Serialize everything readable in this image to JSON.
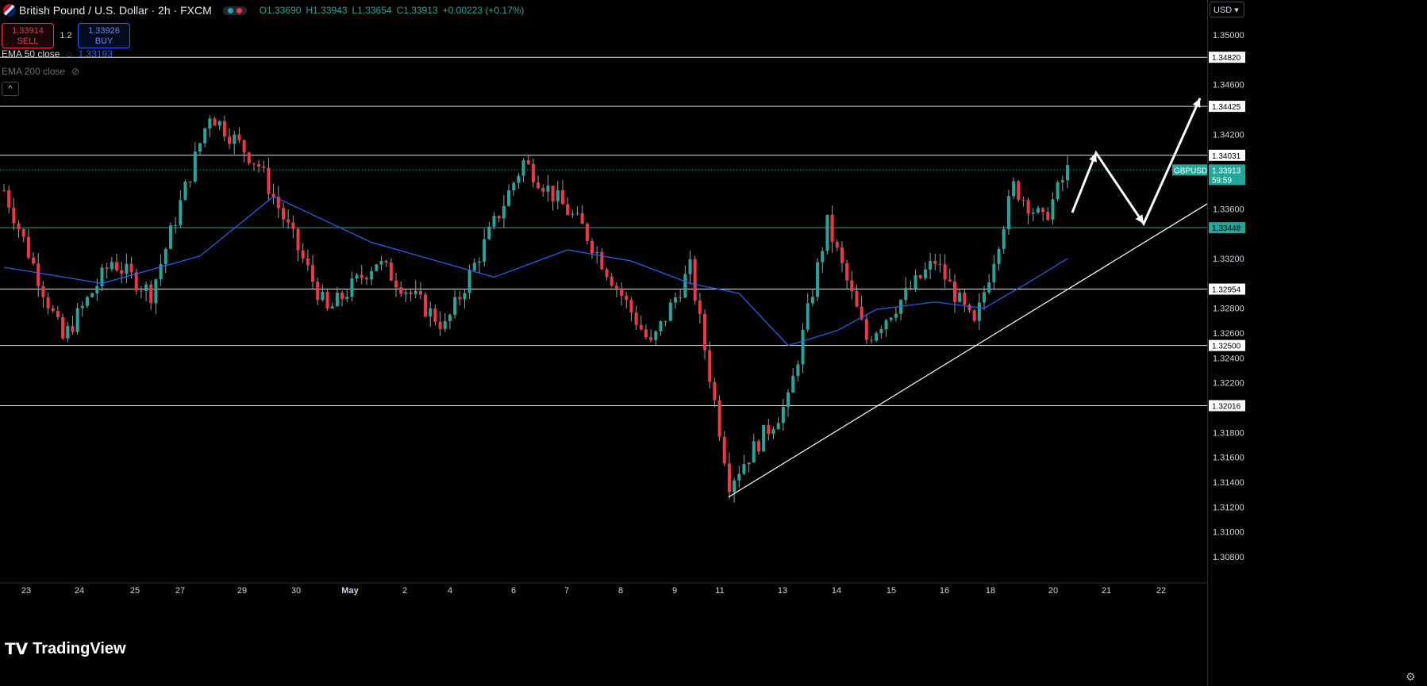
{
  "header": {
    "title": "British Pound / U.S. Dollar · 2h · FXCM",
    "open": "O1.33690",
    "high": "H1.33943",
    "low": "L1.33654",
    "close": "C1.33913",
    "change": "+0.00223 (+0.17%)"
  },
  "trade": {
    "sell_price": "1.33914",
    "sell_label": "SELL",
    "spread": "1.2",
    "buy_price": "1.33926",
    "buy_label": "BUY"
  },
  "indicators": {
    "ema50_label": "EMA 50 close",
    "ema50_value": "1.33193",
    "ema200_label": "EMA 200 close"
  },
  "collapse_glyph": "^",
  "currency": "USD",
  "logo": "TradingView",
  "colors": {
    "up": "#26a69a",
    "down": "#f23645",
    "ema": "#2962ff",
    "bg": "#000000"
  },
  "chart_data": {
    "type": "candlestick",
    "symbol": "GBPUSD",
    "timeframe": "2h",
    "ylim": [
      1.307,
      1.3512
    ],
    "y_ticks": [
      "1.35000",
      "1.34600",
      "1.34200",
      "1.33600",
      "1.33200",
      "1.32800",
      "1.32600",
      "1.32400",
      "1.32200",
      "1.31800",
      "1.31600",
      "1.31400",
      "1.31200",
      "1.31000",
      "1.30800"
    ],
    "x_ticks": [
      "23",
      "24",
      "25",
      "27",
      "29",
      "30",
      "May",
      "2",
      "4",
      "6",
      "7",
      "8",
      "9",
      "11",
      "13",
      "14",
      "15",
      "16",
      "18",
      "20",
      "21",
      "22"
    ],
    "horizontal_levels": [
      "1.34820",
      "1.34425",
      "1.34031",
      "1.33448",
      "1.32954",
      "1.32500",
      "1.32016"
    ],
    "last_price_label": {
      "symbol": "GBPUSD",
      "price": "1.33913",
      "countdown": "59:59"
    },
    "projected_path": [
      1.3357,
      1.3405,
      1.3348,
      1.3449
    ],
    "trendline": [
      1.3128,
      1.3364
    ],
    "swing_points": [
      {
        "i": 0,
        "v": 1.3375
      },
      {
        "i": 12,
        "v": 1.3255
      },
      {
        "i": 22,
        "v": 1.3318
      },
      {
        "i": 30,
        "v": 1.3292
      },
      {
        "i": 42,
        "v": 1.3437
      },
      {
        "i": 52,
        "v": 1.3395
      },
      {
        "i": 66,
        "v": 1.3277
      },
      {
        "i": 76,
        "v": 1.3318
      },
      {
        "i": 90,
        "v": 1.3265
      },
      {
        "i": 106,
        "v": 1.3398
      },
      {
        "i": 118,
        "v": 1.3345
      },
      {
        "i": 132,
        "v": 1.325
      },
      {
        "i": 140,
        "v": 1.3312
      },
      {
        "i": 148,
        "v": 1.314
      },
      {
        "i": 160,
        "v": 1.3205
      },
      {
        "i": 168,
        "v": 1.3348
      },
      {
        "i": 176,
        "v": 1.3255
      },
      {
        "i": 190,
        "v": 1.3318
      },
      {
        "i": 198,
        "v": 1.3265
      },
      {
        "i": 206,
        "v": 1.3378
      },
      {
        "i": 212,
        "v": 1.335
      },
      {
        "i": 217,
        "v": 1.3391
      }
    ],
    "ema50": [
      {
        "i": 0,
        "v": 1.3313
      },
      {
        "i": 20,
        "v": 1.33
      },
      {
        "i": 40,
        "v": 1.3322
      },
      {
        "i": 55,
        "v": 1.337
      },
      {
        "i": 75,
        "v": 1.3333
      },
      {
        "i": 100,
        "v": 1.3305
      },
      {
        "i": 115,
        "v": 1.3327
      },
      {
        "i": 128,
        "v": 1.3318
      },
      {
        "i": 140,
        "v": 1.33
      },
      {
        "i": 150,
        "v": 1.3292
      },
      {
        "i": 160,
        "v": 1.325
      },
      {
        "i": 170,
        "v": 1.3262
      },
      {
        "i": 178,
        "v": 1.3279
      },
      {
        "i": 190,
        "v": 1.3285
      },
      {
        "i": 200,
        "v": 1.328
      },
      {
        "i": 210,
        "v": 1.3303
      },
      {
        "i": 217,
        "v": 1.332
      }
    ]
  }
}
